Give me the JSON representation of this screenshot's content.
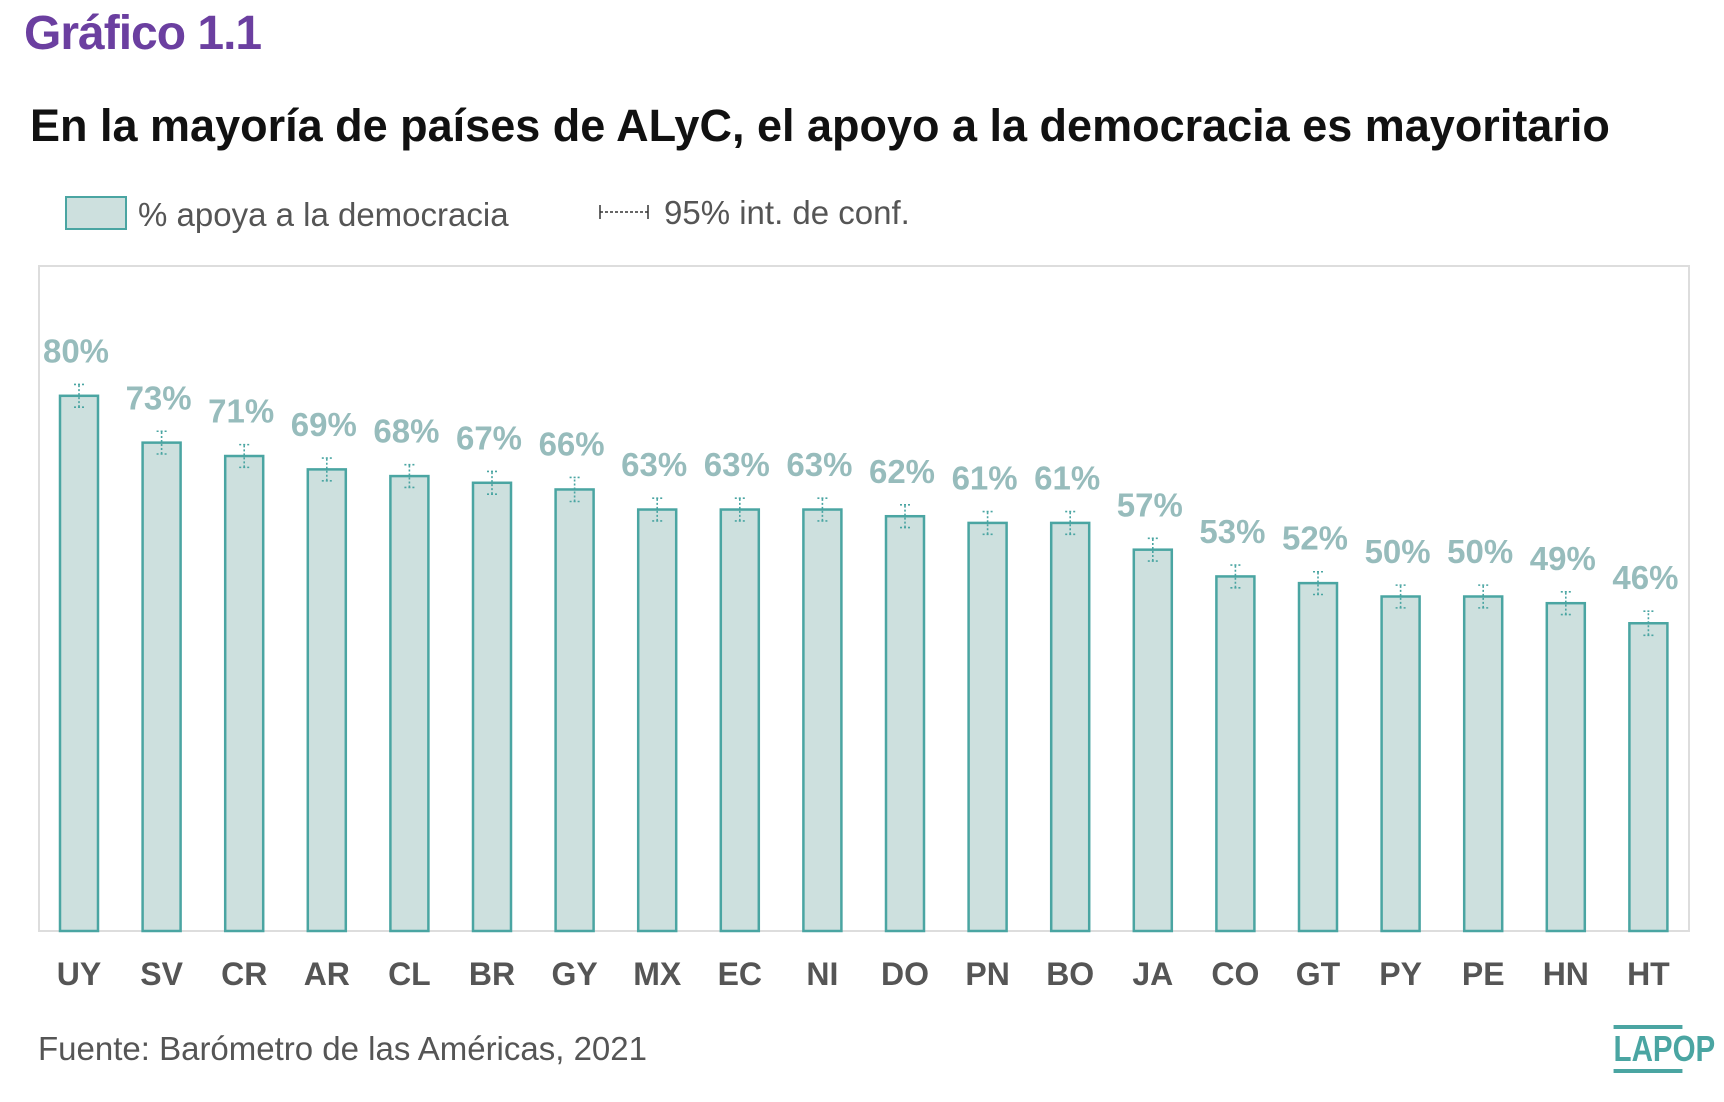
{
  "header": {
    "figure_label": "Gráfico 1.1"
  },
  "chart_data": {
    "type": "bar",
    "title": "En la mayoría de países de ALyC, el apoyo a la democracia es mayoritario",
    "categories": [
      "UY",
      "SV",
      "CR",
      "AR",
      "CL",
      "BR",
      "GY",
      "MX",
      "EC",
      "NI",
      "DO",
      "PN",
      "BO",
      "JA",
      "CO",
      "GT",
      "PY",
      "PE",
      "HN",
      "HT"
    ],
    "series": [
      {
        "name": "% apoya a la democracia",
        "values": [
          80,
          73,
          71,
          69,
          68,
          67,
          66,
          63,
          63,
          63,
          62,
          61,
          61,
          57,
          53,
          52,
          50,
          50,
          49,
          46
        ],
        "value_labels": [
          "80%",
          "73%",
          "71%",
          "69%",
          "68%",
          "67%",
          "66%",
          "63%",
          "63%",
          "63%",
          "62%",
          "61%",
          "61%",
          "57%",
          "53%",
          "52%",
          "50%",
          "50%",
          "49%",
          "46%"
        ]
      }
    ],
    "ci_legend": "95% int. de conf.",
    "ci_low": [
      78.3,
      71.3,
      69.3,
      67.3,
      66.3,
      65.3,
      64.2,
      61.3,
      61.3,
      61.3,
      60.3,
      59.3,
      59.3,
      55.3,
      51.3,
      50.3,
      48.3,
      48.3,
      47.3,
      44.2
    ],
    "ci_high": [
      81.7,
      74.7,
      72.7,
      70.7,
      69.7,
      68.7,
      67.8,
      64.7,
      64.7,
      64.7,
      63.7,
      62.7,
      62.7,
      58.7,
      54.7,
      53.7,
      51.7,
      51.7,
      50.7,
      47.8
    ],
    "ylim": [
      0,
      100
    ],
    "grid": false,
    "legend_position": "top-left",
    "colors": {
      "bar_fill": "#cde0de",
      "bar_stroke": "#4aa5a2",
      "value_label": "#97bcbc",
      "category_label": "#555555"
    }
  },
  "footer": {
    "source": "Fuente: Barómetro de las Américas, 2021",
    "logo_text": "LAPOP"
  }
}
